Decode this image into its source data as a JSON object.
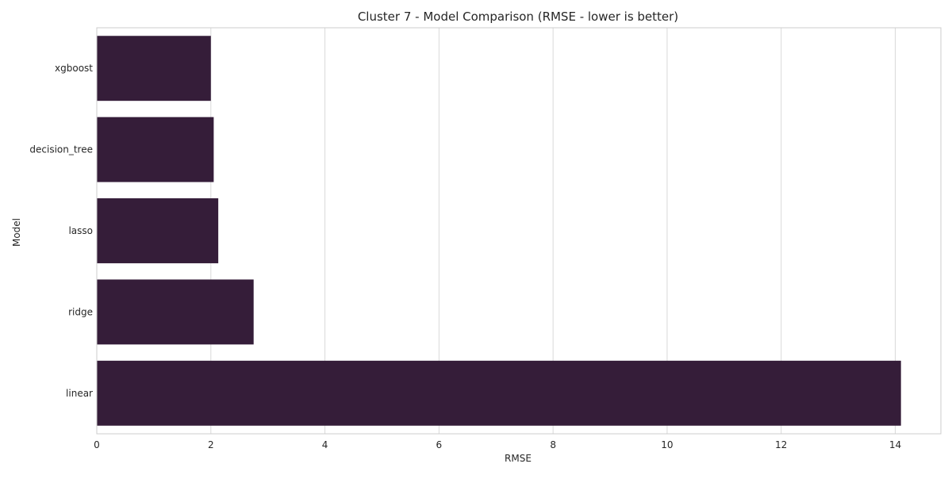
{
  "chart_data": {
    "type": "bar",
    "orientation": "horizontal",
    "title": "Cluster 7 - Model Comparison (RMSE - lower is better)",
    "xlabel": "RMSE",
    "ylabel": "Model",
    "categories": [
      "xgboost",
      "decision_tree",
      "lasso",
      "ridge",
      "linear"
    ],
    "values": [
      2.0,
      2.05,
      2.13,
      2.75,
      14.1
    ],
    "xlim": [
      0,
      14.8
    ],
    "xticks": [
      0,
      2,
      4,
      6,
      8,
      10,
      12,
      14
    ],
    "grid": true,
    "legend": "none",
    "colors": {
      "bar": "#351d39",
      "grid": "#d9d9d9",
      "spine": "#cccccc",
      "text": "#262626"
    }
  }
}
